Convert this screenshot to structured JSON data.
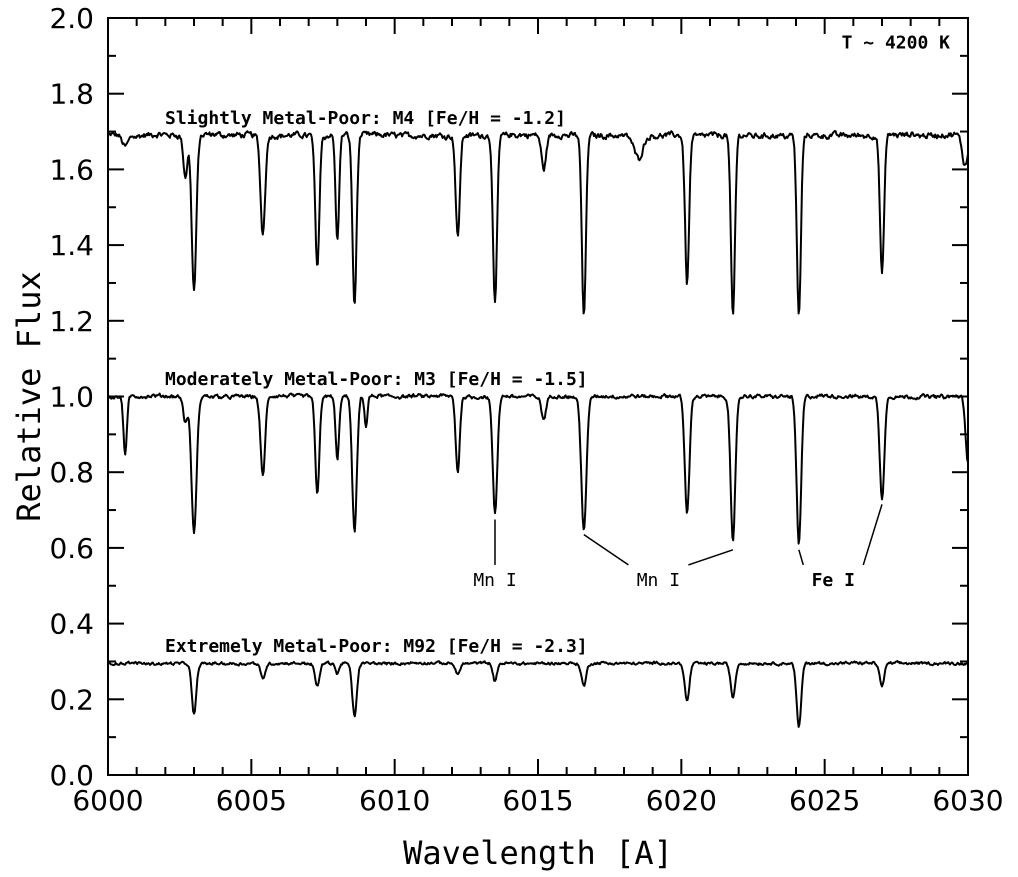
{
  "chart_data": {
    "type": "line",
    "title": "",
    "xlabel": "Wavelength [A]",
    "ylabel": "Relative Flux",
    "xlim": [
      6000,
      6030
    ],
    "ylim": [
      0.0,
      2.0
    ],
    "xticks": [
      6000,
      6005,
      6010,
      6015,
      6020,
      6025,
      6030
    ],
    "xtick_labels": [
      "6000",
      "6005",
      "6010",
      "6015",
      "6020",
      "6025",
      "6030"
    ],
    "yticks": [
      0.0,
      0.2,
      0.4,
      0.6,
      0.8,
      1.0,
      1.2,
      1.4,
      1.6,
      1.8,
      2.0
    ],
    "ytick_labels": [
      "0.0",
      "0.2",
      "0.4",
      "0.6",
      "0.8",
      "1.0",
      "1.2",
      "1.4",
      "1.6",
      "1.8",
      "2.0"
    ],
    "grid": false,
    "color": "#000000",
    "annotations": {
      "temperature": "T ~ 4200 K",
      "series_labels": [
        "Slightly Metal-Poor: M4 [Fe/H = -1.2]",
        "Moderately Metal-Poor: M3 [Fe/H = -1.5]",
        "Extremely Metal-Poor: M92 [Fe/H = -2.3]"
      ],
      "line_ids": [
        {
          "label": "Mn I",
          "bold": false,
          "x": 6013.5,
          "lines": [
            6013.5
          ]
        },
        {
          "label": "Mn I",
          "bold": false,
          "x": 6019.2,
          "lines": [
            6016.6,
            6021.8
          ]
        },
        {
          "label": "Fe I",
          "bold": true,
          "x": 6025.3,
          "lines": [
            6024.1,
            6027.0
          ]
        }
      ]
    },
    "series": [
      {
        "continuum": 1.69,
        "noise": 0.012,
        "lines": [
          {
            "x": 6000.6,
            "depth": 0.03,
            "w": 0.1
          },
          {
            "x": 6002.7,
            "depth": 0.11,
            "w": 0.07
          },
          {
            "x": 6003.0,
            "depth": 0.41,
            "w": 0.08
          },
          {
            "x": 6005.4,
            "depth": 0.26,
            "w": 0.08
          },
          {
            "x": 6007.3,
            "depth": 0.35,
            "w": 0.07
          },
          {
            "x": 6008.0,
            "depth": 0.28,
            "w": 0.06
          },
          {
            "x": 6008.6,
            "depth": 0.45,
            "w": 0.07
          },
          {
            "x": 6012.2,
            "depth": 0.27,
            "w": 0.07
          },
          {
            "x": 6013.5,
            "depth": 0.45,
            "w": 0.07
          },
          {
            "x": 6015.2,
            "depth": 0.09,
            "w": 0.08
          },
          {
            "x": 6016.6,
            "depth": 0.48,
            "w": 0.07
          },
          {
            "x": 6018.5,
            "depth": 0.06,
            "w": 0.15
          },
          {
            "x": 6020.2,
            "depth": 0.39,
            "w": 0.07
          },
          {
            "x": 6021.8,
            "depth": 0.48,
            "w": 0.07
          },
          {
            "x": 6024.1,
            "depth": 0.48,
            "w": 0.07
          },
          {
            "x": 6027.0,
            "depth": 0.37,
            "w": 0.07
          },
          {
            "x": 6029.9,
            "depth": 0.08,
            "w": 0.1
          }
        ]
      },
      {
        "continuum": 1.0,
        "noise": 0.008,
        "lines": [
          {
            "x": 6000.6,
            "depth": 0.15,
            "w": 0.06
          },
          {
            "x": 6002.7,
            "depth": 0.07,
            "w": 0.07
          },
          {
            "x": 6003.0,
            "depth": 0.36,
            "w": 0.09
          },
          {
            "x": 6005.4,
            "depth": 0.21,
            "w": 0.08
          },
          {
            "x": 6007.3,
            "depth": 0.26,
            "w": 0.07
          },
          {
            "x": 6008.0,
            "depth": 0.17,
            "w": 0.06
          },
          {
            "x": 6008.6,
            "depth": 0.36,
            "w": 0.08
          },
          {
            "x": 6009.0,
            "depth": 0.08,
            "w": 0.05
          },
          {
            "x": 6012.2,
            "depth": 0.2,
            "w": 0.07
          },
          {
            "x": 6013.5,
            "depth": 0.31,
            "w": 0.08
          },
          {
            "x": 6015.2,
            "depth": 0.06,
            "w": 0.08
          },
          {
            "x": 6016.6,
            "depth": 0.35,
            "w": 0.09
          },
          {
            "x": 6020.2,
            "depth": 0.31,
            "w": 0.08
          },
          {
            "x": 6021.8,
            "depth": 0.39,
            "w": 0.08
          },
          {
            "x": 6024.1,
            "depth": 0.39,
            "w": 0.08
          },
          {
            "x": 6027.0,
            "depth": 0.27,
            "w": 0.08
          },
          {
            "x": 6030.0,
            "depth": 0.18,
            "w": 0.08
          }
        ]
      },
      {
        "continuum": 0.295,
        "noise": 0.006,
        "lines": [
          {
            "x": 6003.0,
            "depth": 0.135,
            "w": 0.08
          },
          {
            "x": 6005.4,
            "depth": 0.04,
            "w": 0.08
          },
          {
            "x": 6007.3,
            "depth": 0.06,
            "w": 0.08
          },
          {
            "x": 6008.0,
            "depth": 0.03,
            "w": 0.06
          },
          {
            "x": 6008.6,
            "depth": 0.14,
            "w": 0.08
          },
          {
            "x": 6012.2,
            "depth": 0.03,
            "w": 0.07
          },
          {
            "x": 6013.5,
            "depth": 0.05,
            "w": 0.07
          },
          {
            "x": 6016.6,
            "depth": 0.06,
            "w": 0.08
          },
          {
            "x": 6020.2,
            "depth": 0.1,
            "w": 0.08
          },
          {
            "x": 6021.8,
            "depth": 0.09,
            "w": 0.08
          },
          {
            "x": 6024.1,
            "depth": 0.17,
            "w": 0.08
          },
          {
            "x": 6027.0,
            "depth": 0.06,
            "w": 0.08
          }
        ]
      }
    ]
  }
}
